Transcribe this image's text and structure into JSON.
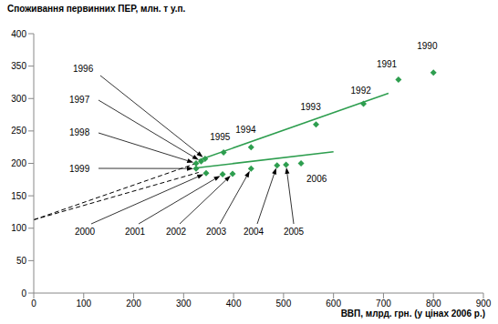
{
  "chart_data": {
    "type": "scatter",
    "x_label": "ВВП, млрд. грн. (у цінах 2006 р.)",
    "y_label": "Споживання первинних ПЕР, млн. т у.п.",
    "xlim": [
      0,
      900
    ],
    "xticks": [
      0,
      100,
      200,
      300,
      400,
      500,
      600,
      700,
      800,
      900
    ],
    "ylim": [
      0,
      400
    ],
    "yticks": [
      0,
      50,
      100,
      150,
      200,
      250,
      300,
      350,
      400
    ],
    "grid": false,
    "series": [
      {
        "type": "scatter",
        "color": "#2e9e4f",
        "marker": "diamond",
        "x": [
          800,
          730,
          660,
          565,
          435,
          380,
          343,
          335,
          325,
          325,
          345,
          378,
          398,
          435,
          487,
          505,
          535
        ],
        "values": [
          340,
          329,
          292,
          260,
          225,
          217,
          207,
          203,
          200,
          192,
          185,
          183,
          184,
          192,
          197,
          198,
          200
        ],
        "point_labels": [
          "1990",
          "1991",
          "1992",
          "1993",
          "1994",
          "1995",
          "1996",
          "1997",
          "1998",
          "1999",
          "2000",
          "2001",
          "2002",
          "2003",
          "2004",
          "2005",
          "2006"
        ]
      },
      {
        "type": "line",
        "color": "#2e9e4f",
        "line_style": "solid",
        "x": [
          330,
          710
        ],
        "values": [
          205,
          308
        ]
      },
      {
        "type": "line",
        "color": "#2e9e4f",
        "line_style": "solid",
        "x": [
          325,
          600
        ],
        "values": [
          193,
          218
        ]
      },
      {
        "type": "line",
        "color": "#000000",
        "line_style": "dashed",
        "x": [
          0,
          325
        ],
        "values": [
          113,
          200
        ]
      },
      {
        "type": "line",
        "color": "#000000",
        "line_style": "dashed",
        "x": [
          0,
          330
        ],
        "values": [
          113,
          186
        ]
      }
    ]
  }
}
